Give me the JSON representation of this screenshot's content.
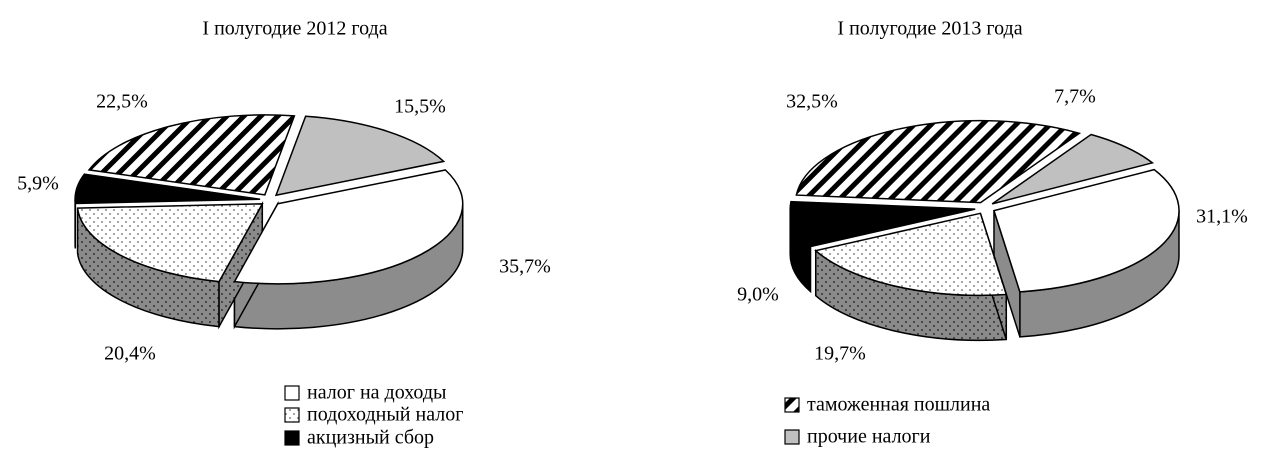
{
  "chart_data": [
    {
      "type": "pie",
      "title": "I полугодие 2012 года",
      "values": [
        35.7,
        20.4,
        5.9,
        22.5,
        15.5
      ],
      "value_labels": [
        "35,7%",
        "20,4%",
        "5,9%",
        "22,5%",
        "15,5%"
      ]
    },
    {
      "type": "pie",
      "title": "I полугодие 2013 года",
      "values": [
        31.1,
        19.7,
        9.0,
        32.5,
        7.7
      ],
      "value_labels": [
        "31,1%",
        "19,7%",
        "9,0%",
        "32,5%",
        "7,7%"
      ]
    }
  ],
  "legend": {
    "items": [
      "налог на доходы",
      "подоходный налог",
      "акцизный сбор",
      "таможенная пошлина",
      "прочие налоги"
    ],
    "patterns": [
      "white",
      "dots",
      "black",
      "hatch",
      "gray"
    ]
  }
}
